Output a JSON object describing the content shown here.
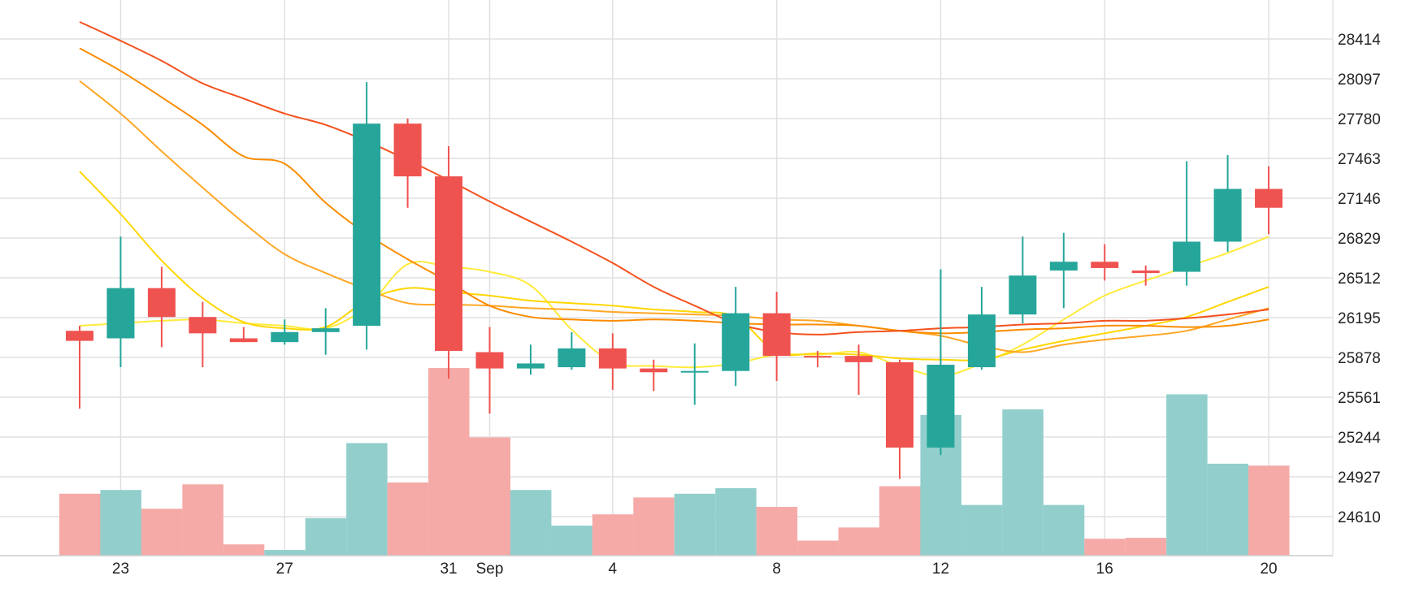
{
  "chart_data": {
    "type": "candlestick",
    "title": "",
    "xlabel": "",
    "ylabel": "",
    "ylim": [
      24300,
      28800
    ],
    "y_ticks": [
      24610,
      24927,
      25244,
      25561,
      25878,
      26195,
      26512,
      26829,
      27146,
      27463,
      27780,
      28097,
      28414
    ],
    "x_ticks": [
      {
        "index": 1,
        "label": "23"
      },
      {
        "index": 5,
        "label": "27"
      },
      {
        "index": 9,
        "label": "31"
      },
      {
        "index": 10,
        "label": "Sep"
      },
      {
        "index": 13,
        "label": "4"
      },
      {
        "index": 17,
        "label": "8"
      },
      {
        "index": 21,
        "label": "12"
      },
      {
        "index": 25,
        "label": "16"
      },
      {
        "index": 29,
        "label": "20"
      }
    ],
    "grid": true,
    "colors": {
      "up": "#26a69a",
      "down": "#ef5350",
      "volume_up": "#92cfcc",
      "volume_down": "#f5aaa8",
      "grid": "#e0e0e0",
      "ma": [
        "#ffeb3b",
        "#ffd600",
        "#ffa726",
        "#fb8c00",
        "#f4511e"
      ]
    },
    "candles": {
      "open": [
        26090,
        26030,
        26430,
        26200,
        26030,
        26000,
        26080,
        26130,
        27740,
        27320,
        25920,
        25790,
        25800,
        25950,
        25790,
        25760,
        25770,
        26230,
        25890,
        25890,
        25840,
        25160,
        25800,
        26220,
        26570,
        26640,
        26570,
        26560,
        26800,
        27220
      ],
      "high": [
        26130,
        26840,
        26600,
        26320,
        26120,
        26180,
        26270,
        28070,
        27780,
        27560,
        26120,
        25980,
        26080,
        26070,
        25860,
        25990,
        26440,
        26400,
        25930,
        25980,
        25860,
        26580,
        26440,
        26840,
        26870,
        26780,
        26610,
        27440,
        27490,
        27400
      ],
      "low": [
        25470,
        25800,
        25960,
        25800,
        26000,
        25980,
        25900,
        25940,
        27070,
        25710,
        25430,
        25740,
        25780,
        25620,
        25610,
        25500,
        25650,
        25690,
        25800,
        25580,
        24910,
        25100,
        25780,
        26150,
        26270,
        26490,
        26450,
        26450,
        26720,
        26860
      ],
      "close": [
        26010,
        26430,
        26200,
        26070,
        26000,
        26080,
        26110,
        27740,
        27320,
        25930,
        25790,
        25830,
        25950,
        25790,
        25760,
        25770,
        26230,
        25890,
        25880,
        25840,
        25160,
        25820,
        26220,
        26530,
        26640,
        26590,
        26550,
        26800,
        27220,
        27070
      ]
    },
    "volume": {
      "values": [
        330,
        350,
        250,
        380,
        60,
        30,
        200,
        600,
        390,
        1000,
        630,
        350,
        160,
        220,
        310,
        330,
        360,
        260,
        80,
        150,
        370,
        750,
        270,
        780,
        270,
        90,
        95,
        860,
        490,
        480
      ],
      "max": 1100
    },
    "moving_averages": [
      {
        "values": [
          26130,
          26150,
          26170,
          26180,
          26150,
          26130,
          26110,
          26280,
          26620,
          26600,
          26560,
          26450,
          26100,
          25840,
          25810,
          25800,
          25830,
          25900,
          25900,
          25920,
          25810,
          25730,
          25830,
          25980,
          26180,
          26370,
          26490,
          26600,
          26710,
          26840
        ]
      },
      {
        "values": [
          27360,
          27020,
          26650,
          26350,
          26160,
          26110,
          26120,
          26330,
          26430,
          26400,
          26370,
          26330,
          26310,
          26290,
          26260,
          26240,
          26200,
          25920,
          25910,
          25900,
          25870,
          25860,
          25860,
          25940,
          26010,
          26070,
          26130,
          26200,
          26320,
          26440
        ]
      },
      {
        "values": [
          28080,
          27820,
          27520,
          27230,
          26950,
          26700,
          26550,
          26420,
          26310,
          26300,
          26290,
          26270,
          26260,
          26240,
          26230,
          26220,
          26210,
          26180,
          26170,
          26130,
          26090,
          26050,
          25970,
          25920,
          25980,
          26020,
          26050,
          26090,
          26180,
          26270
        ]
      },
      {
        "values": [
          28340,
          28160,
          27950,
          27730,
          27480,
          27420,
          27110,
          26860,
          26660,
          26480,
          26290,
          26200,
          26180,
          26170,
          26180,
          26170,
          26150,
          26140,
          26140,
          26130,
          26090,
          26070,
          26080,
          26100,
          26110,
          26130,
          26130,
          26120,
          26130,
          26180
        ]
      },
      {
        "values": [
          28550,
          28400,
          28240,
          28060,
          27940,
          27820,
          27730,
          27600,
          27450,
          27290,
          27120,
          26960,
          26800,
          26630,
          26440,
          26290,
          26150,
          26080,
          26060,
          26080,
          26090,
          26110,
          26120,
          26140,
          26150,
          26170,
          26170,
          26190,
          26220,
          26260
        ]
      }
    ]
  }
}
